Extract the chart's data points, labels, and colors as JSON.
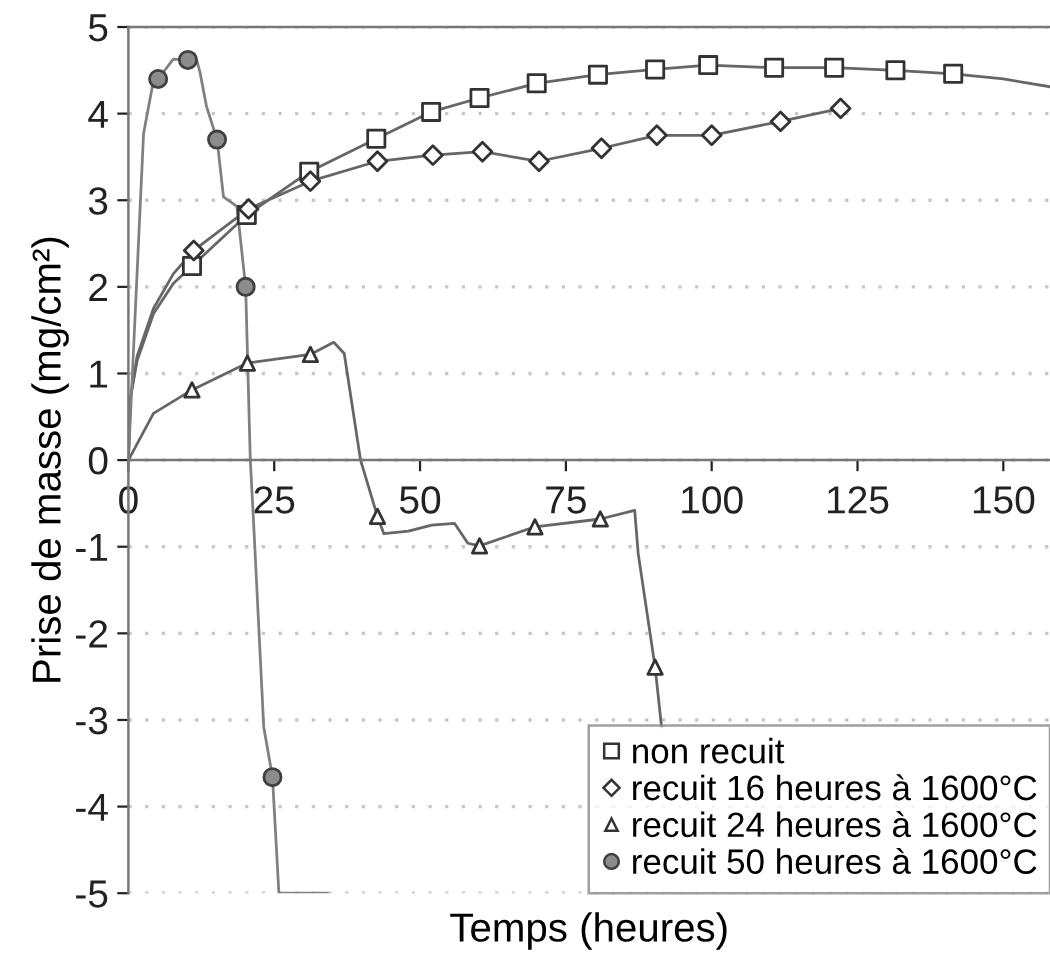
{
  "chart_data": {
    "type": "line",
    "xlabel": "Temps (heures)",
    "ylabel": "Prise de masse (mg/cm²)",
    "xlim": [
      0,
      158
    ],
    "ylim": [
      -5,
      5
    ],
    "xticks": [
      0,
      25,
      50,
      75,
      100,
      125,
      150
    ],
    "yticks": [
      -5,
      -4,
      -3,
      -2,
      -1,
      0,
      1,
      2,
      3,
      4,
      5
    ],
    "grid": "y",
    "legend": "bottom right",
    "series": [
      {
        "marker": "none",
        "color": "#666666",
        "x": [
          0,
          0.3,
          1.5,
          4.3,
          7.7,
          10.9,
          20.3,
          31.0,
          42.5,
          51.9,
          60.2,
          70.0,
          80.5,
          90.3,
          99.4,
          110.7,
          121.0,
          131.5,
          141.4,
          150.0,
          158.0
        ],
        "values": [
          0,
          0.7,
          1.15,
          1.69,
          2.04,
          2.24,
          2.83,
          3.33,
          3.71,
          4.02,
          4.18,
          4.35,
          4.45,
          4.51,
          4.56,
          4.53,
          4.53,
          4.5,
          4.46,
          4.4,
          4.31
        ]
      },
      {
        "marker": "none",
        "color": "#666666",
        "x": [
          0,
          0.3,
          1.5,
          4.3,
          7.7,
          11.2,
          20.6,
          31.2,
          42.7,
          52.2,
          60.7,
          70.4,
          81.1,
          90.6,
          100.0,
          111.8,
          122.1
        ],
        "values": [
          0,
          0.7,
          1.2,
          1.75,
          2.15,
          2.42,
          2.9,
          3.22,
          3.45,
          3.52,
          3.56,
          3.45,
          3.6,
          3.75,
          3.75,
          3.91,
          4.06
        ]
      },
      {
        "marker": "none",
        "color": "#666666",
        "x": [
          0,
          4.3,
          10.9,
          20.4,
          31.2,
          35.2,
          37.0,
          39.8,
          42.7,
          43.8,
          48.0,
          52.0,
          55.9,
          58.2,
          60.2,
          69.7,
          80.9,
          86.8,
          87.4,
          90.3,
          91.4
        ],
        "values": [
          0,
          0.54,
          0.81,
          1.12,
          1.22,
          1.36,
          1.23,
          0,
          -0.65,
          -0.85,
          -0.82,
          -0.75,
          -0.73,
          -0.96,
          -0.99,
          -0.77,
          -0.68,
          -0.58,
          -1.08,
          -2.39,
          -3.08
        ]
      },
      {
        "marker": "none",
        "color": "#808080",
        "x": [
          0,
          2.6,
          4.1,
          5.1,
          7.7,
          10.2,
          11.7,
          12.3,
          13.4,
          15.2,
          16.3,
          18.6,
          20.1,
          20.9,
          21.5,
          23.2,
          24.7,
          25.8,
          29.5,
          34.1
        ],
        "values": [
          0,
          3.77,
          4.31,
          4.4,
          4.63,
          4.62,
          4.62,
          4.47,
          4.08,
          3.7,
          3.04,
          2.93,
          2.0,
          0,
          -0.77,
          -3.08,
          -3.66,
          -5.0,
          -5.0,
          -5.0
        ]
      },
      {
        "type": "scatter",
        "name": "non recuit",
        "marker": "square",
        "color": "#333333",
        "x": [
          10.9,
          20.3,
          31.0,
          42.5,
          51.9,
          60.2,
          70.0,
          80.5,
          90.3,
          99.4,
          110.7,
          121.0,
          131.5,
          141.4
        ],
        "values": [
          2.24,
          2.83,
          3.33,
          3.71,
          4.02,
          4.18,
          4.35,
          4.45,
          4.51,
          4.56,
          4.53,
          4.53,
          4.5,
          4.46
        ]
      },
      {
        "type": "scatter",
        "name": "recuit 16 heures à 1600°C",
        "marker": "diamond",
        "color": "#333333",
        "x": [
          11.2,
          20.6,
          31.2,
          42.7,
          52.2,
          60.7,
          70.4,
          81.1,
          90.6,
          100.0,
          111.8,
          122.1
        ],
        "values": [
          2.42,
          2.9,
          3.22,
          3.45,
          3.52,
          3.56,
          3.45,
          3.6,
          3.75,
          3.75,
          3.91,
          4.06
        ]
      },
      {
        "type": "scatter",
        "name": "recuit 24 heures à 1600°C",
        "marker": "triangle",
        "color": "#333333",
        "x": [
          10.9,
          20.4,
          31.2,
          42.7,
          60.2,
          69.7,
          80.9,
          90.3
        ],
        "values": [
          0.81,
          1.12,
          1.22,
          -0.65,
          -0.99,
          -0.77,
          -0.68,
          -2.39
        ]
      },
      {
        "type": "scatter",
        "name": "recuit 50 heures à 1600°C",
        "marker": "circle",
        "color": "#8c8c8c",
        "x": [
          5.1,
          10.2,
          15.2,
          20.1,
          24.7
        ],
        "values": [
          4.4,
          4.62,
          3.7,
          2.0,
          -3.66
        ]
      }
    ]
  }
}
